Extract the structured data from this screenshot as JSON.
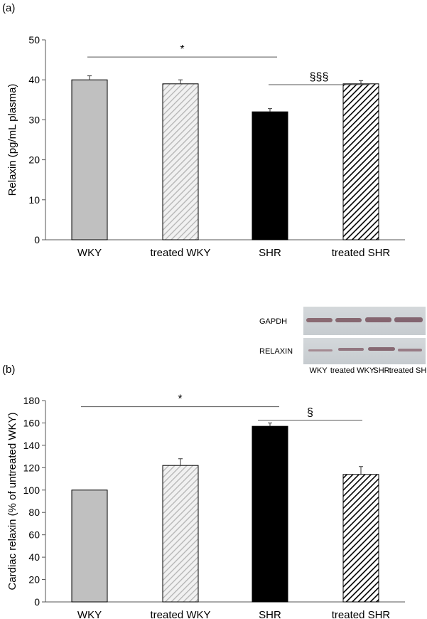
{
  "chart_data": [
    {
      "type": "bar",
      "panel_label": "(a)",
      "ylabel": "Relaxin (pg/mL plasma)",
      "xlabel": "",
      "ylim": [
        0,
        50
      ],
      "yticks": [
        0,
        10,
        20,
        30,
        40,
        50
      ],
      "categories": [
        "WKY",
        "treated WKY",
        "SHR",
        "treated SHR"
      ],
      "values": [
        40,
        39,
        32,
        39
      ],
      "errors": [
        1,
        1,
        0.8,
        0.8
      ],
      "bar_styles": [
        "solid-gray",
        "hatch-light",
        "solid-black",
        "hatch-dark"
      ],
      "grid": false,
      "annotations": [
        {
          "text": "*",
          "from": 0,
          "to": 2,
          "level": 45.7
        },
        {
          "text": "§§§",
          "from": 2,
          "to": 3,
          "level": 38.8
        }
      ]
    },
    {
      "type": "bar",
      "panel_label": "(b)",
      "ylabel": "Cardiac relaxin (% of untreated WKY)",
      "xlabel": "",
      "ylim": [
        0,
        180
      ],
      "yticks": [
        0,
        20,
        40,
        60,
        80,
        100,
        120,
        140,
        160,
        180
      ],
      "categories": [
        "WKY",
        "treated WKY",
        "SHR",
        "treated SHR"
      ],
      "values": [
        100,
        122,
        157,
        114
      ],
      "errors": [
        0,
        6,
        3,
        7
      ],
      "bar_styles": [
        "solid-gray",
        "hatch-light",
        "solid-black",
        "hatch-dark"
      ],
      "grid": false,
      "annotations": [
        {
          "text": "*",
          "from": 0,
          "to": 2,
          "level": 174.5
        },
        {
          "text": "§",
          "from": 2,
          "to": 3,
          "level": 162.5
        }
      ]
    }
  ],
  "blot": {
    "rows": [
      "GAPDH",
      "RELAXIN"
    ],
    "lanes": [
      "WKY",
      "treated WKY",
      "SHR",
      "treated SHR"
    ]
  }
}
